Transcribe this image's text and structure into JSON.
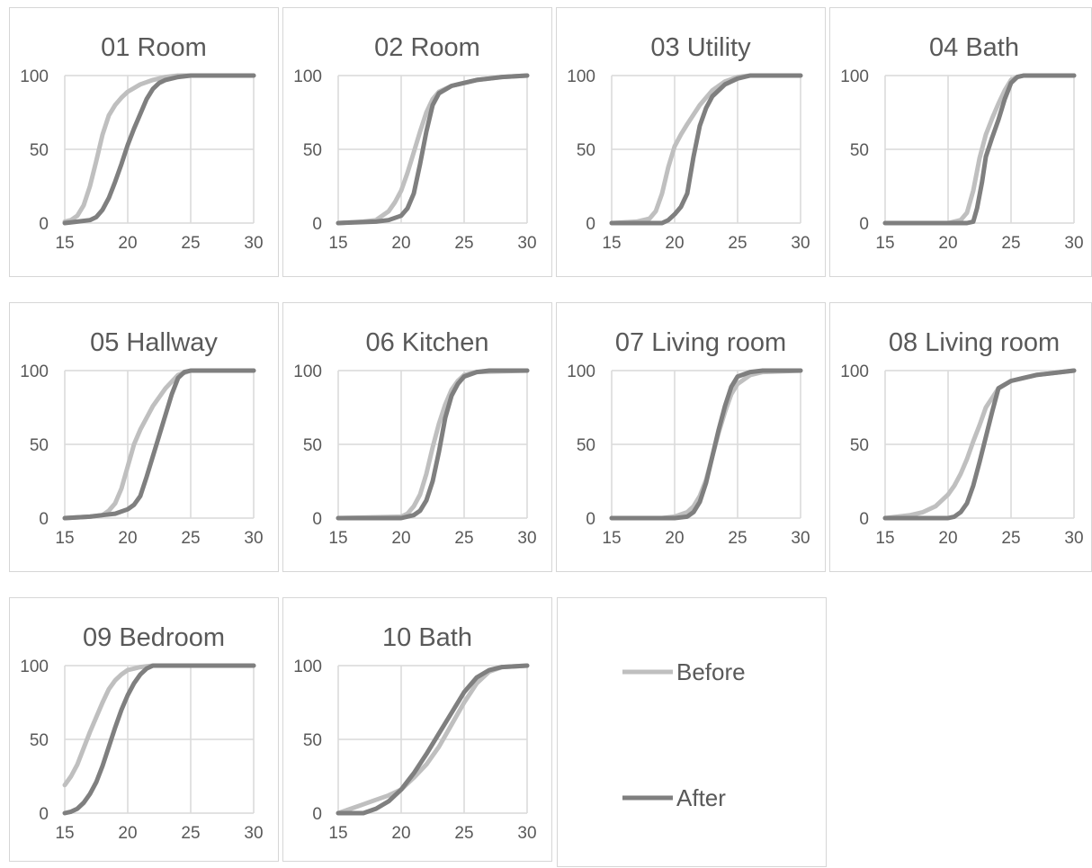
{
  "colors": {
    "before": "#bfbfbf",
    "after": "#7f7f7f",
    "grid": "#d9d9d9",
    "text": "#595959",
    "frame": "#d6d6d6"
  },
  "legend": {
    "before": "Before",
    "after": "After"
  },
  "chart_data": [
    {
      "type": "line",
      "title": "01 Room",
      "xlim": [
        15,
        30
      ],
      "ylim": [
        0,
        100
      ],
      "xticks": [
        15,
        20,
        25,
        30
      ],
      "yticks": [
        0,
        50,
        100
      ],
      "grid": true,
      "series": [
        {
          "name": "Before",
          "x": [
            15,
            15.5,
            16,
            16.5,
            17,
            17.5,
            18,
            18.5,
            19,
            19.5,
            20,
            21,
            22,
            23,
            24,
            25,
            30
          ],
          "y": [
            1,
            2,
            5,
            12,
            25,
            42,
            60,
            73,
            80,
            85,
            89,
            94,
            97,
            99,
            100,
            100,
            100
          ]
        },
        {
          "name": "After",
          "x": [
            15,
            16,
            17,
            17.5,
            18,
            18.5,
            19,
            19.5,
            20,
            20.5,
            21,
            21.5,
            22,
            22.5,
            23,
            24,
            25,
            30
          ],
          "y": [
            0,
            1,
            2,
            4,
            9,
            17,
            28,
            40,
            53,
            64,
            74,
            84,
            91,
            95,
            97,
            99,
            100,
            100
          ]
        }
      ]
    },
    {
      "type": "line",
      "title": "02 Room",
      "xlim": [
        15,
        30
      ],
      "ylim": [
        0,
        100
      ],
      "xticks": [
        15,
        20,
        25,
        30
      ],
      "yticks": [
        0,
        50,
        100
      ],
      "grid": true,
      "series": [
        {
          "name": "Before",
          "x": [
            15,
            17,
            18,
            19,
            19.5,
            20,
            20.5,
            21,
            21.5,
            22,
            22.5,
            23,
            24,
            25,
            26,
            27,
            28,
            30
          ],
          "y": [
            0,
            1,
            2,
            8,
            14,
            22,
            34,
            48,
            62,
            75,
            84,
            89,
            93,
            95,
            97,
            98,
            99,
            100
          ]
        },
        {
          "name": "After",
          "x": [
            15,
            18,
            19,
            20,
            20.5,
            21,
            21.5,
            22,
            22.5,
            23,
            24,
            25,
            26,
            27,
            28,
            30
          ],
          "y": [
            0,
            1,
            2,
            5,
            10,
            20,
            40,
            62,
            80,
            88,
            93,
            95,
            97,
            98,
            99,
            100
          ]
        }
      ]
    },
    {
      "type": "line",
      "title": "03 Utility",
      "xlim": [
        15,
        30
      ],
      "ylim": [
        0,
        100
      ],
      "xticks": [
        15,
        20,
        25,
        30
      ],
      "yticks": [
        0,
        50,
        100
      ],
      "grid": true,
      "series": [
        {
          "name": "Before",
          "x": [
            15,
            17,
            18,
            18.5,
            19,
            19.5,
            20,
            20.5,
            21,
            22,
            23,
            24,
            25,
            26,
            30
          ],
          "y": [
            0,
            1,
            3,
            8,
            20,
            38,
            52,
            60,
            67,
            80,
            90,
            96,
            99,
            100,
            100
          ]
        },
        {
          "name": "After",
          "x": [
            15,
            19,
            19.5,
            20,
            20.5,
            21,
            21.5,
            22,
            22.5,
            23,
            24,
            25,
            26,
            30
          ],
          "y": [
            0,
            0,
            2,
            6,
            11,
            20,
            45,
            66,
            78,
            86,
            94,
            98,
            100,
            100
          ]
        }
      ]
    },
    {
      "type": "line",
      "title": "04 Bath",
      "xlim": [
        15,
        30
      ],
      "ylim": [
        0,
        100
      ],
      "xticks": [
        15,
        20,
        25,
        30
      ],
      "yticks": [
        0,
        50,
        100
      ],
      "grid": true,
      "series": [
        {
          "name": "Before",
          "x": [
            15,
            20,
            21,
            21.5,
            22,
            22.5,
            23,
            23.5,
            24,
            24.5,
            25,
            25.5,
            26,
            30
          ],
          "y": [
            0,
            0,
            2,
            7,
            22,
            44,
            60,
            71,
            81,
            90,
            97,
            99,
            100,
            100
          ]
        },
        {
          "name": "After",
          "x": [
            15,
            21.5,
            22,
            22.3,
            22.7,
            23,
            23.5,
            24,
            24.5,
            25,
            25.5,
            26,
            30
          ],
          "y": [
            0,
            0,
            1,
            10,
            28,
            45,
            58,
            70,
            84,
            95,
            99,
            100,
            100
          ]
        }
      ]
    },
    {
      "type": "line",
      "title": "05 Hallway",
      "xlim": [
        15,
        30
      ],
      "ylim": [
        0,
        100
      ],
      "xticks": [
        15,
        20,
        25,
        30
      ],
      "yticks": [
        0,
        50,
        100
      ],
      "grid": true,
      "series": [
        {
          "name": "Before",
          "x": [
            15,
            17,
            18,
            18.5,
            19,
            19.5,
            20,
            20.5,
            21,
            21.5,
            22,
            23,
            24,
            25,
            30
          ],
          "y": [
            0,
            1,
            2,
            5,
            10,
            20,
            35,
            50,
            60,
            68,
            76,
            88,
            97,
            100,
            100
          ]
        },
        {
          "name": "After",
          "x": [
            15,
            17,
            18,
            19,
            20,
            20.5,
            21,
            21.5,
            22,
            22.5,
            23,
            23.5,
            24,
            24.5,
            25,
            30
          ],
          "y": [
            0,
            1,
            2,
            3,
            6,
            9,
            15,
            28,
            42,
            56,
            70,
            84,
            95,
            99,
            100,
            100
          ]
        }
      ]
    },
    {
      "type": "line",
      "title": "06 Kitchen",
      "xlim": [
        15,
        30
      ],
      "ylim": [
        0,
        100
      ],
      "xticks": [
        15,
        20,
        25,
        30
      ],
      "yticks": [
        0,
        50,
        100
      ],
      "grid": true,
      "series": [
        {
          "name": "Before",
          "x": [
            15,
            20,
            20.5,
            21,
            21.5,
            22,
            22.5,
            23,
            23.5,
            24,
            24.5,
            25,
            26,
            30
          ],
          "y": [
            0,
            1,
            3,
            8,
            16,
            30,
            48,
            64,
            77,
            87,
            93,
            97,
            99,
            100
          ]
        },
        {
          "name": "After",
          "x": [
            15,
            20,
            21,
            21.5,
            22,
            22.5,
            23,
            23.5,
            24,
            24.5,
            25,
            26,
            27,
            30
          ],
          "y": [
            0,
            0,
            2,
            5,
            12,
            25,
            45,
            68,
            83,
            91,
            96,
            99,
            100,
            100
          ]
        }
      ]
    },
    {
      "type": "line",
      "title": "07 Living room",
      "xlim": [
        15,
        30
      ],
      "ylim": [
        0,
        100
      ],
      "xticks": [
        15,
        20,
        25,
        30
      ],
      "yticks": [
        0,
        50,
        100
      ],
      "grid": true,
      "series": [
        {
          "name": "Before",
          "x": [
            15,
            19,
            20,
            21,
            21.5,
            22,
            22.5,
            23,
            23.5,
            24,
            24.5,
            25,
            26,
            27,
            30
          ],
          "y": [
            0,
            0,
            1,
            4,
            8,
            15,
            26,
            42,
            58,
            72,
            84,
            91,
            97,
            99,
            100
          ]
        },
        {
          "name": "After",
          "x": [
            15,
            20,
            21,
            21.5,
            22,
            22.5,
            23,
            23.5,
            24,
            24.5,
            25,
            26,
            27,
            30
          ],
          "y": [
            0,
            0,
            1,
            4,
            11,
            24,
            42,
            60,
            76,
            89,
            96,
            99,
            100,
            100
          ]
        }
      ]
    },
    {
      "type": "line",
      "title": "08 Living room",
      "xlim": [
        15,
        30
      ],
      "ylim": [
        0,
        100
      ],
      "xticks": [
        15,
        20,
        25,
        30
      ],
      "yticks": [
        0,
        50,
        100
      ],
      "grid": true,
      "series": [
        {
          "name": "Before",
          "x": [
            15,
            16,
            17,
            18,
            19,
            20,
            20.5,
            21,
            21.5,
            22,
            22.5,
            23,
            24,
            25,
            26,
            27,
            28,
            29,
            30
          ],
          "y": [
            0,
            1,
            2,
            4,
            8,
            16,
            22,
            30,
            40,
            52,
            63,
            75,
            88,
            93,
            95,
            97,
            98,
            99,
            100
          ]
        },
        {
          "name": "After",
          "x": [
            15,
            20,
            20.5,
            21,
            21.5,
            22,
            22.5,
            23,
            23.5,
            24,
            25,
            26,
            27,
            28,
            29,
            30
          ],
          "y": [
            0,
            0,
            1,
            4,
            10,
            22,
            38,
            55,
            72,
            88,
            93,
            95,
            97,
            98,
            99,
            100
          ]
        }
      ]
    },
    {
      "type": "line",
      "title": "09 Bedroom",
      "xlim": [
        15,
        30
      ],
      "ylim": [
        0,
        100
      ],
      "xticks": [
        15,
        20,
        25,
        30
      ],
      "yticks": [
        0,
        50,
        100
      ],
      "grid": true,
      "series": [
        {
          "name": "Before",
          "x": [
            15,
            15.5,
            16,
            16.5,
            17,
            17.5,
            18,
            18.5,
            19,
            19.5,
            20,
            20.5,
            21,
            22,
            23,
            30
          ],
          "y": [
            19,
            25,
            33,
            44,
            55,
            65,
            75,
            84,
            90,
            94,
            97,
            98,
            99,
            100,
            100,
            100
          ]
        },
        {
          "name": "After",
          "x": [
            15,
            15.5,
            16,
            16.5,
            17,
            17.5,
            18,
            18.5,
            19,
            19.5,
            20,
            20.5,
            21,
            21.5,
            22,
            23,
            30
          ],
          "y": [
            0,
            1,
            3,
            7,
            13,
            21,
            32,
            45,
            58,
            70,
            80,
            88,
            94,
            98,
            100,
            100,
            100
          ]
        }
      ]
    },
    {
      "type": "line",
      "title": "10 Bath",
      "xlim": [
        15,
        30
      ],
      "ylim": [
        0,
        100
      ],
      "xticks": [
        15,
        20,
        25,
        30
      ],
      "yticks": [
        0,
        50,
        100
      ],
      "grid": true,
      "series": [
        {
          "name": "Before",
          "x": [
            15,
            16,
            17,
            18,
            19,
            20,
            21,
            22,
            23,
            24,
            25,
            26,
            27,
            28,
            30
          ],
          "y": [
            0,
            3,
            6,
            9,
            12,
            16,
            24,
            33,
            45,
            60,
            75,
            88,
            96,
            99,
            100
          ]
        },
        {
          "name": "After",
          "x": [
            15,
            16,
            17,
            18,
            19,
            20,
            21,
            22,
            23,
            24,
            25,
            26,
            27,
            28,
            30
          ],
          "y": [
            0,
            0,
            0,
            3,
            8,
            16,
            27,
            40,
            54,
            68,
            82,
            92,
            97,
            99,
            100
          ]
        }
      ]
    }
  ]
}
